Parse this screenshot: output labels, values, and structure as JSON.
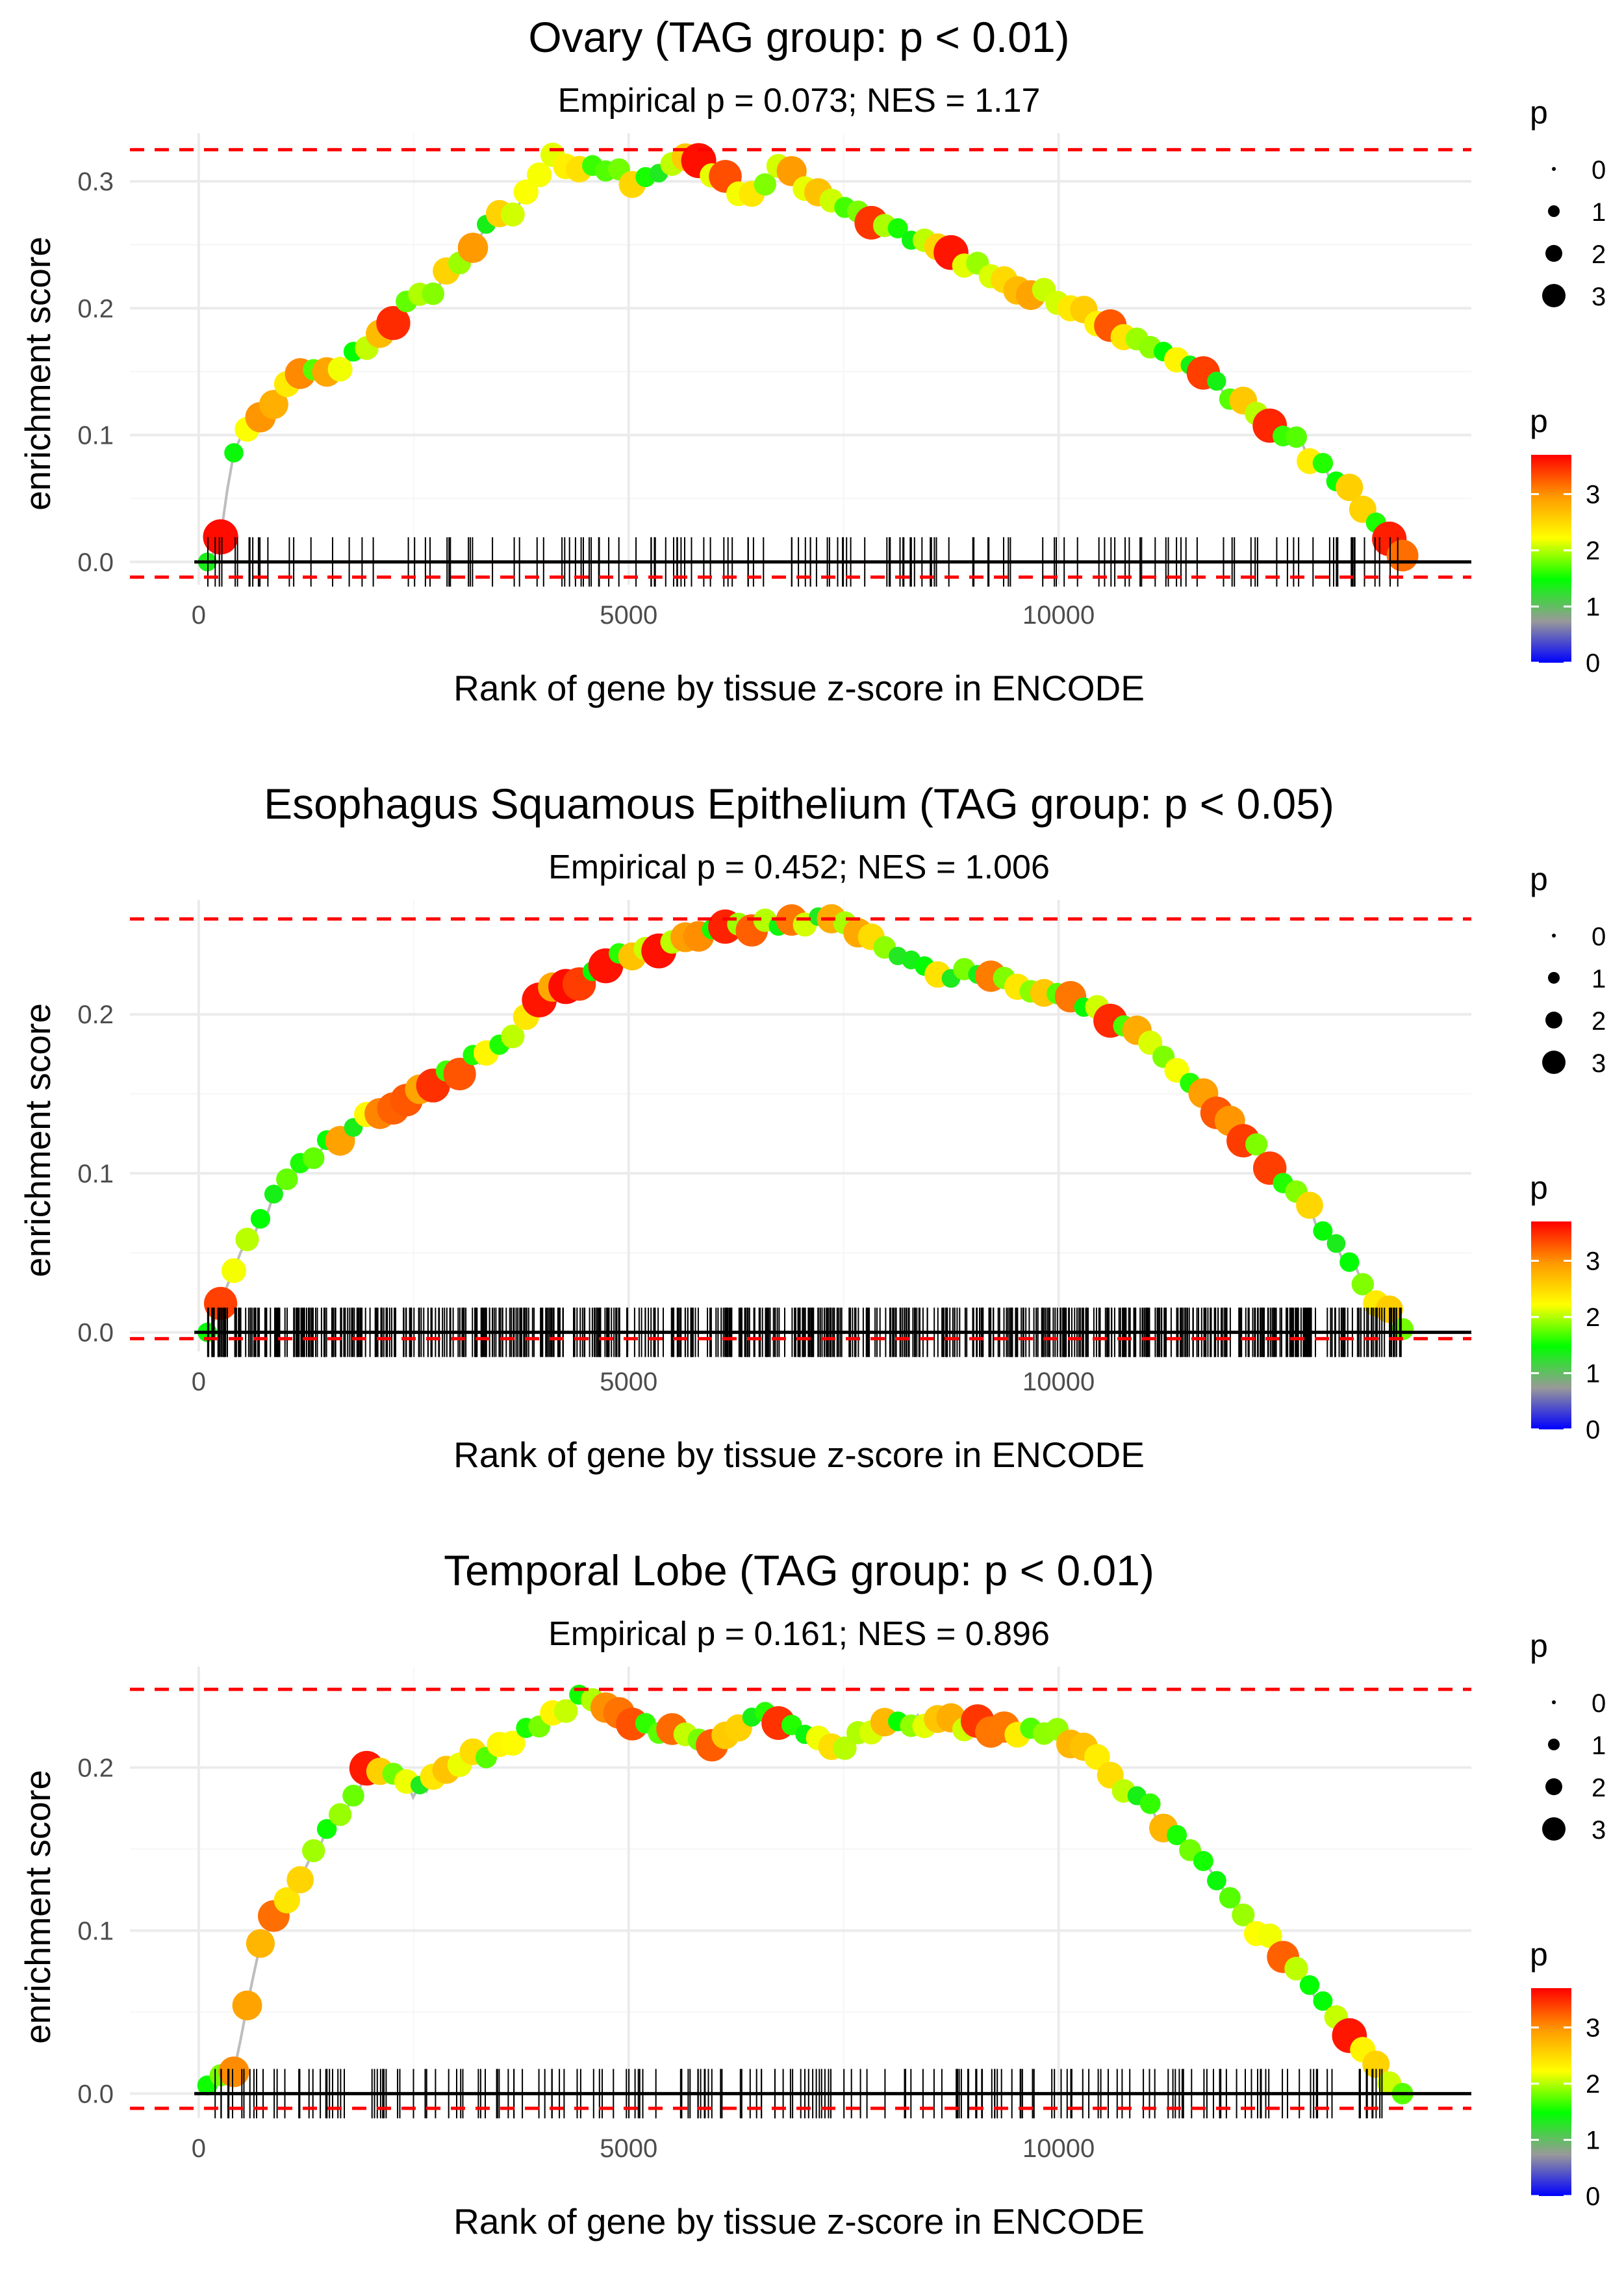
{
  "chart_data": [
    {
      "type": "line",
      "title": "Ovary (TAG group: p < 0.01)",
      "subtitle": "Empirical p = 0.073; NES = 1.17",
      "xlabel": "Rank of gene by tissue z-score in ENCODE",
      "ylabel": "enrichment score",
      "xlim": [
        -800,
        14800
      ],
      "ylim": [
        -0.018,
        0.338
      ],
      "x_ticks": [
        0,
        5000,
        10000
      ],
      "x_tick_labels": [
        "0",
        "5000",
        "10000"
      ],
      "y_ticks": [
        0.0,
        0.1,
        0.2,
        0.3
      ],
      "y_tick_labels": [
        "0.0",
        "0.1",
        "0.2",
        "0.3"
      ],
      "hlines": {
        "max_es": 0.325,
        "min_es": -0.012,
        "zero": 0.0
      },
      "n_hits": 150,
      "curve": [
        [
          100,
          0
        ],
        [
          250,
          0.02
        ],
        [
          400,
          0.09
        ],
        [
          700,
          0.11
        ],
        [
          1100,
          0.15
        ],
        [
          1600,
          0.15
        ],
        [
          2200,
          0.19
        ],
        [
          2800,
          0.22
        ],
        [
          3300,
          0.26
        ],
        [
          3700,
          0.28
        ],
        [
          4100,
          0.32
        ],
        [
          4600,
          0.31
        ],
        [
          5100,
          0.3
        ],
        [
          5700,
          0.32
        ],
        [
          6400,
          0.29
        ],
        [
          6800,
          0.31
        ],
        [
          7500,
          0.28
        ],
        [
          8500,
          0.25
        ],
        [
          9500,
          0.22
        ],
        [
          10500,
          0.19
        ],
        [
          11500,
          0.155
        ],
        [
          12500,
          0.11
        ],
        [
          13300,
          0.06
        ],
        [
          14000,
          0.005
        ]
      ],
      "color_legend": {
        "title": "p",
        "ticks": [
          0,
          1,
          2,
          3
        ],
        "max": 3.7,
        "colors": [
          "#0000ff",
          "#999999",
          "#00ff00",
          "#ffff00",
          "#ff9900",
          "#ff0000"
        ]
      },
      "size_legend": {
        "title": "p",
        "items": [
          "0",
          "1",
          "2",
          "3"
        ]
      },
      "seed": 11
    },
    {
      "type": "line",
      "title": "Esophagus Squamous Epithelium (TAG group: p < 0.05)",
      "subtitle": "Empirical p = 0.452; NES = 1.006",
      "xlabel": "Rank of gene by tissue z-score in ENCODE",
      "ylabel": "enrichment score",
      "xlim": [
        -800,
        14800
      ],
      "ylim": [
        -0.012,
        0.272
      ],
      "x_ticks": [
        0,
        5000,
        10000
      ],
      "x_tick_labels": [
        "0",
        "5000",
        "10000"
      ],
      "y_ticks": [
        0.0,
        0.1,
        0.2
      ],
      "y_tick_labels": [
        "0.0",
        "0.1",
        "0.2"
      ],
      "hlines": {
        "max_es": 0.26,
        "min_es": -0.004,
        "zero": 0.0
      },
      "n_hits": 700,
      "curve": [
        [
          100,
          0
        ],
        [
          500,
          0.05
        ],
        [
          1000,
          0.095
        ],
        [
          1500,
          0.12
        ],
        [
          2000,
          0.135
        ],
        [
          2500,
          0.15
        ],
        [
          3000,
          0.165
        ],
        [
          3500,
          0.18
        ],
        [
          4000,
          0.21
        ],
        [
          4500,
          0.225
        ],
        [
          5000,
          0.24
        ],
        [
          5500,
          0.245
        ],
        [
          6000,
          0.25
        ],
        [
          6500,
          0.255
        ],
        [
          7000,
          0.26
        ],
        [
          7500,
          0.255
        ],
        [
          8000,
          0.24
        ],
        [
          8500,
          0.228
        ],
        [
          9000,
          0.225
        ],
        [
          9500,
          0.218
        ],
        [
          10000,
          0.21
        ],
        [
          10500,
          0.2
        ],
        [
          11000,
          0.185
        ],
        [
          11500,
          0.16
        ],
        [
          12000,
          0.13
        ],
        [
          12500,
          0.105
        ],
        [
          13000,
          0.07
        ],
        [
          13500,
          0.035
        ],
        [
          14000,
          0.002
        ]
      ],
      "color_legend": {
        "title": "p",
        "ticks": [
          0,
          1,
          2,
          3
        ],
        "max": 3.7,
        "colors": [
          "#0000ff",
          "#999999",
          "#00ff00",
          "#ffff00",
          "#ff9900",
          "#ff0000"
        ]
      },
      "size_legend": {
        "title": "p",
        "items": [
          "0",
          "1",
          "2",
          "3"
        ]
      },
      "seed": 23
    },
    {
      "type": "line",
      "title": "Temporal Lobe (TAG group: p < 0.01)",
      "subtitle": "Empirical p = 0.161; NES = 0.896",
      "xlabel": "Rank of gene by tissue z-score in ENCODE",
      "ylabel": "enrichment score",
      "xlim": [
        -800,
        14800
      ],
      "ylim": [
        -0.015,
        0.262
      ],
      "x_ticks": [
        0,
        5000,
        10000
      ],
      "x_tick_labels": [
        "0",
        "5000",
        "10000"
      ],
      "y_ticks": [
        0.0,
        0.1,
        0.2
      ],
      "y_tick_labels": [
        "0.0",
        "0.1",
        "0.2"
      ],
      "hlines": {
        "max_es": 0.248,
        "min_es": -0.009,
        "zero": 0.0
      },
      "n_hits": 200,
      "curve": [
        [
          100,
          0.005
        ],
        [
          400,
          0.015
        ],
        [
          700,
          0.09
        ],
        [
          1000,
          0.12
        ],
        [
          1500,
          0.16
        ],
        [
          2000,
          0.2
        ],
        [
          2500,
          0.185
        ],
        [
          3000,
          0.2
        ],
        [
          3500,
          0.215
        ],
        [
          4000,
          0.225
        ],
        [
          4500,
          0.245
        ],
        [
          5000,
          0.23
        ],
        [
          5500,
          0.22
        ],
        [
          6000,
          0.21
        ],
        [
          6500,
          0.235
        ],
        [
          7000,
          0.22
        ],
        [
          7500,
          0.215
        ],
        [
          8000,
          0.225
        ],
        [
          8500,
          0.23
        ],
        [
          9000,
          0.225
        ],
        [
          9500,
          0.22
        ],
        [
          10000,
          0.225
        ],
        [
          10500,
          0.2
        ],
        [
          11000,
          0.18
        ],
        [
          11500,
          0.15
        ],
        [
          12000,
          0.12
        ],
        [
          12500,
          0.09
        ],
        [
          13000,
          0.06
        ],
        [
          13500,
          0.03
        ],
        [
          14000,
          0
        ]
      ],
      "color_legend": {
        "title": "p",
        "ticks": [
          0,
          1,
          2,
          3
        ],
        "max": 3.7,
        "colors": [
          "#0000ff",
          "#999999",
          "#00ff00",
          "#ffff00",
          "#ff9900",
          "#ff0000"
        ]
      },
      "size_legend": {
        "title": "p",
        "items": [
          "0",
          "1",
          "2",
          "3"
        ]
      },
      "seed": 37
    }
  ]
}
